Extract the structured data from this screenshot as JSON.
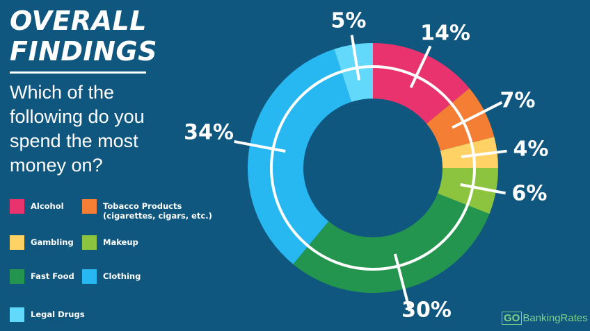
{
  "title": {
    "line1": "OVERALL",
    "line2": "FINDINGS"
  },
  "question": "Which of the following do you spend the most money on?",
  "brand": {
    "box": "GO",
    "rest": "BankingRates"
  },
  "colors": {
    "background": "#10577f",
    "alcohol": "#e8336e",
    "tobacco": "#f47e34",
    "gambling": "#fed264",
    "makeup": "#8cc440",
    "fast_food": "#24954e",
    "clothing": "#27b7f1",
    "legal_drugs": "#62d8fb"
  },
  "legend": [
    {
      "label": "Alcohol",
      "color": "#e8336e"
    },
    {
      "label": "Tobacco Products\n(cigarettes, cigars, etc.)",
      "color": "#f47e34"
    },
    {
      "label": "Gambling",
      "color": "#fed264"
    },
    {
      "label": "Makeup",
      "color": "#8cc440"
    },
    {
      "label": "Fast Food",
      "color": "#24954e"
    },
    {
      "label": "Clothing",
      "color": "#27b7f1"
    },
    {
      "label": "Legal Drugs",
      "color": "#62d8fb"
    }
  ],
  "chart_data": {
    "type": "pie",
    "style": "donut",
    "categories": [
      "Alcohol",
      "Tobacco Products (cigarettes, cigars, etc.)",
      "Gambling",
      "Makeup",
      "Fast Food",
      "Clothing",
      "Legal Drugs"
    ],
    "values": [
      14,
      7,
      4,
      6,
      30,
      34,
      5
    ],
    "labels": [
      "14%",
      "7%",
      "4%",
      "6%",
      "30%",
      "34%",
      "5%"
    ],
    "colors": [
      "#e8336e",
      "#f47e34",
      "#fed264",
      "#8cc440",
      "#24954e",
      "#27b7f1",
      "#62d8fb"
    ],
    "legend": "left",
    "start_angle": "12 o'clock, clockwise"
  }
}
